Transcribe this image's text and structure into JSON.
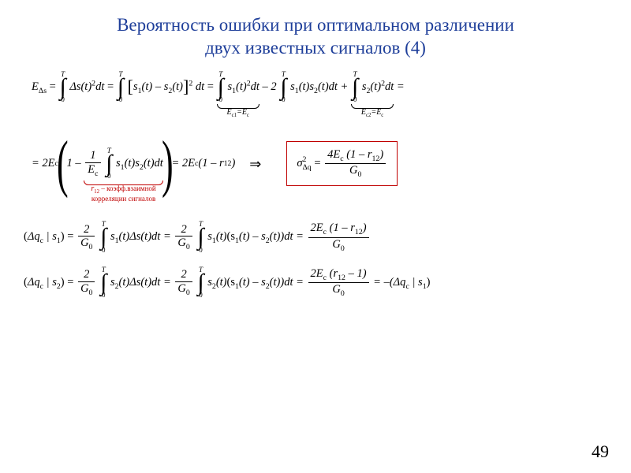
{
  "colors": {
    "title": "#1f3f9a",
    "text": "#000000",
    "accent_red": "#c00000",
    "box_border": "#c00000",
    "background": "#ffffff"
  },
  "typography": {
    "title_fontsize_pt": 17,
    "body_fontsize_pt": 11,
    "font_family": "Times New Roman"
  },
  "title": {
    "line1": "Вероятность ошибки при оптимальном различении",
    "line2": "двух известных сигналов (4)"
  },
  "eq1": {
    "lhs": "E",
    "lhs_sub": "Δs",
    "t1": "Δs(t)",
    "sq": "2",
    "dt": "dt",
    "t2a": "s",
    "t2a_sub": "1",
    "t2b": "(t) – s",
    "t2b_sub": "2",
    "t2c": "(t)",
    "ub1": {
      "inner_a": "s",
      "inner_a_sub": "1",
      "inner_b": "(t)",
      "label_a": "E",
      "label_a_sub": "c1",
      "label_eq": "=E",
      "label_b_sub": "c"
    },
    "mid": " – 2",
    "mid2a": "s",
    "mid2a_sub": "1",
    "mid2b": "(t)s",
    "mid2b_sub": "2",
    "mid2c": "(t)dt + ",
    "ub2": {
      "inner_a": "s",
      "inner_a_sub": "2",
      "inner_b": "(t)",
      "label_a": "E",
      "label_a_sub": "c2",
      "label_eq": "=E",
      "label_b_sub": "c"
    },
    "tail": " =",
    "int_top": "T",
    "int_bot": "0"
  },
  "eq2": {
    "pre": "= 2E",
    "pre_sub": "c",
    "one": "1 – ",
    "frac_num": "1",
    "frac_den": "E",
    "frac_den_sub": "c",
    "inner_a": "s",
    "inner_a_sub": "1",
    "inner_b": "(t)s",
    "inner_b_sub": "2",
    "inner_c": "(t)dt",
    "r12": "r",
    "r12_sub": "12",
    "annot1": " – коэфф.взаимной",
    "annot2": "корреляции сигналов",
    "after": " = 2E",
    "after_sub": "c",
    "paren": "(1 – r",
    "paren_sub": "12",
    "paren_close": ")",
    "arrow": "⇒",
    "box_lhs": "σ",
    "box_lhs_sup": "2",
    "box_lhs_sub": "Δq",
    "box_num_a": "4E",
    "box_num_a_sub": "c",
    "box_num_b": "(1 – r",
    "box_num_b_sub": "12",
    "box_num_c": ")",
    "box_den": "G",
    "box_den_sub": "0",
    "int_top": "T",
    "int_bot": "0"
  },
  "eq3": {
    "lhs_open": "(",
    "dq": "Δq",
    "dq_sub": "c",
    "bar": " | s",
    "bar_sub": "1",
    "close": ") = ",
    "frac_num": "2",
    "frac_den": "G",
    "frac_den_sub": "0",
    "i1a": "s",
    "i1a_sub": "1",
    "i1b": "(t)Δs(t)dt = ",
    "i2a": "s",
    "i2a_sub": "1",
    "i2b": "(t)",
    "i2c": "(s",
    "i2c_sub": "1",
    "i2d": "(t) – s",
    "i2d_sub": "2",
    "i2e": "(t))",
    "i2f": "dt = ",
    "rnum_a": "2E",
    "rnum_a_sub": "c",
    "rnum_b": "(1 – r",
    "rnum_b_sub": "12",
    "rnum_c": ")",
    "rden": "G",
    "rden_sub": "0",
    "int_top": "T",
    "int_bot": "0"
  },
  "eq4": {
    "lhs_open": "(",
    "dq": "Δq",
    "dq_sub": "c",
    "bar": " | s",
    "bar_sub": "2",
    "close": ") = ",
    "frac_num": "2",
    "frac_den": "G",
    "frac_den_sub": "0",
    "i1a": "s",
    "i1a_sub": "2",
    "i1b": "(t)Δs(t)dt = ",
    "i2a": "s",
    "i2a_sub": "2",
    "i2b": "(t)",
    "i2c": "(s",
    "i2c_sub": "1",
    "i2d": "(t) – s",
    "i2d_sub": "2",
    "i2e": "(t))",
    "i2f": "dt = ",
    "rnum_a": "2E",
    "rnum_a_sub": "c",
    "rnum_b": "(r",
    "rnum_b_sub": "12",
    "rnum_c": " – 1)",
    "rden": "G",
    "rden_sub": "0",
    "tail": " = –(",
    "tail_dq": "Δq",
    "tail_dq_sub": "c",
    "tail_bar": " | s",
    "tail_bar_sub": "1",
    "tail_close": ")",
    "int_top": "T",
    "int_bot": "0"
  },
  "page_number": "49"
}
